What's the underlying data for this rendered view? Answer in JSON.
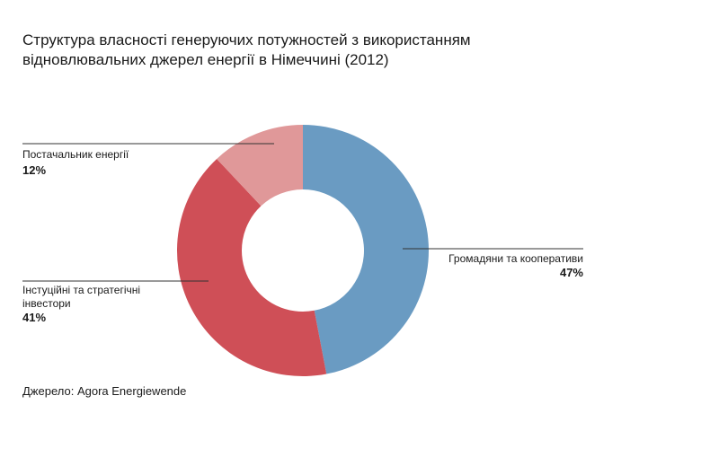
{
  "chart_data": {
    "type": "pie",
    "title": "Структура власності генеруючих потужностей з використанням відновлювальних джерел енергії в Німеччині (2012)",
    "slices": [
      {
        "label": "Громадяни та кооперативи",
        "value": 47,
        "value_label": "47%",
        "color": "#6a9bc2"
      },
      {
        "label": "Інстуційні та стратегічні інвестори",
        "label_lines": [
          "Інстуційні та стратегічні",
          "інвестори"
        ],
        "value": 41,
        "value_label": "41%",
        "color": "#cf4f57"
      },
      {
        "label": "Постачальник енергії",
        "value": 12,
        "value_label": "12%",
        "color": "#e09899"
      }
    ],
    "donut": true
  },
  "source": "Джерело: Agora Energiewende"
}
